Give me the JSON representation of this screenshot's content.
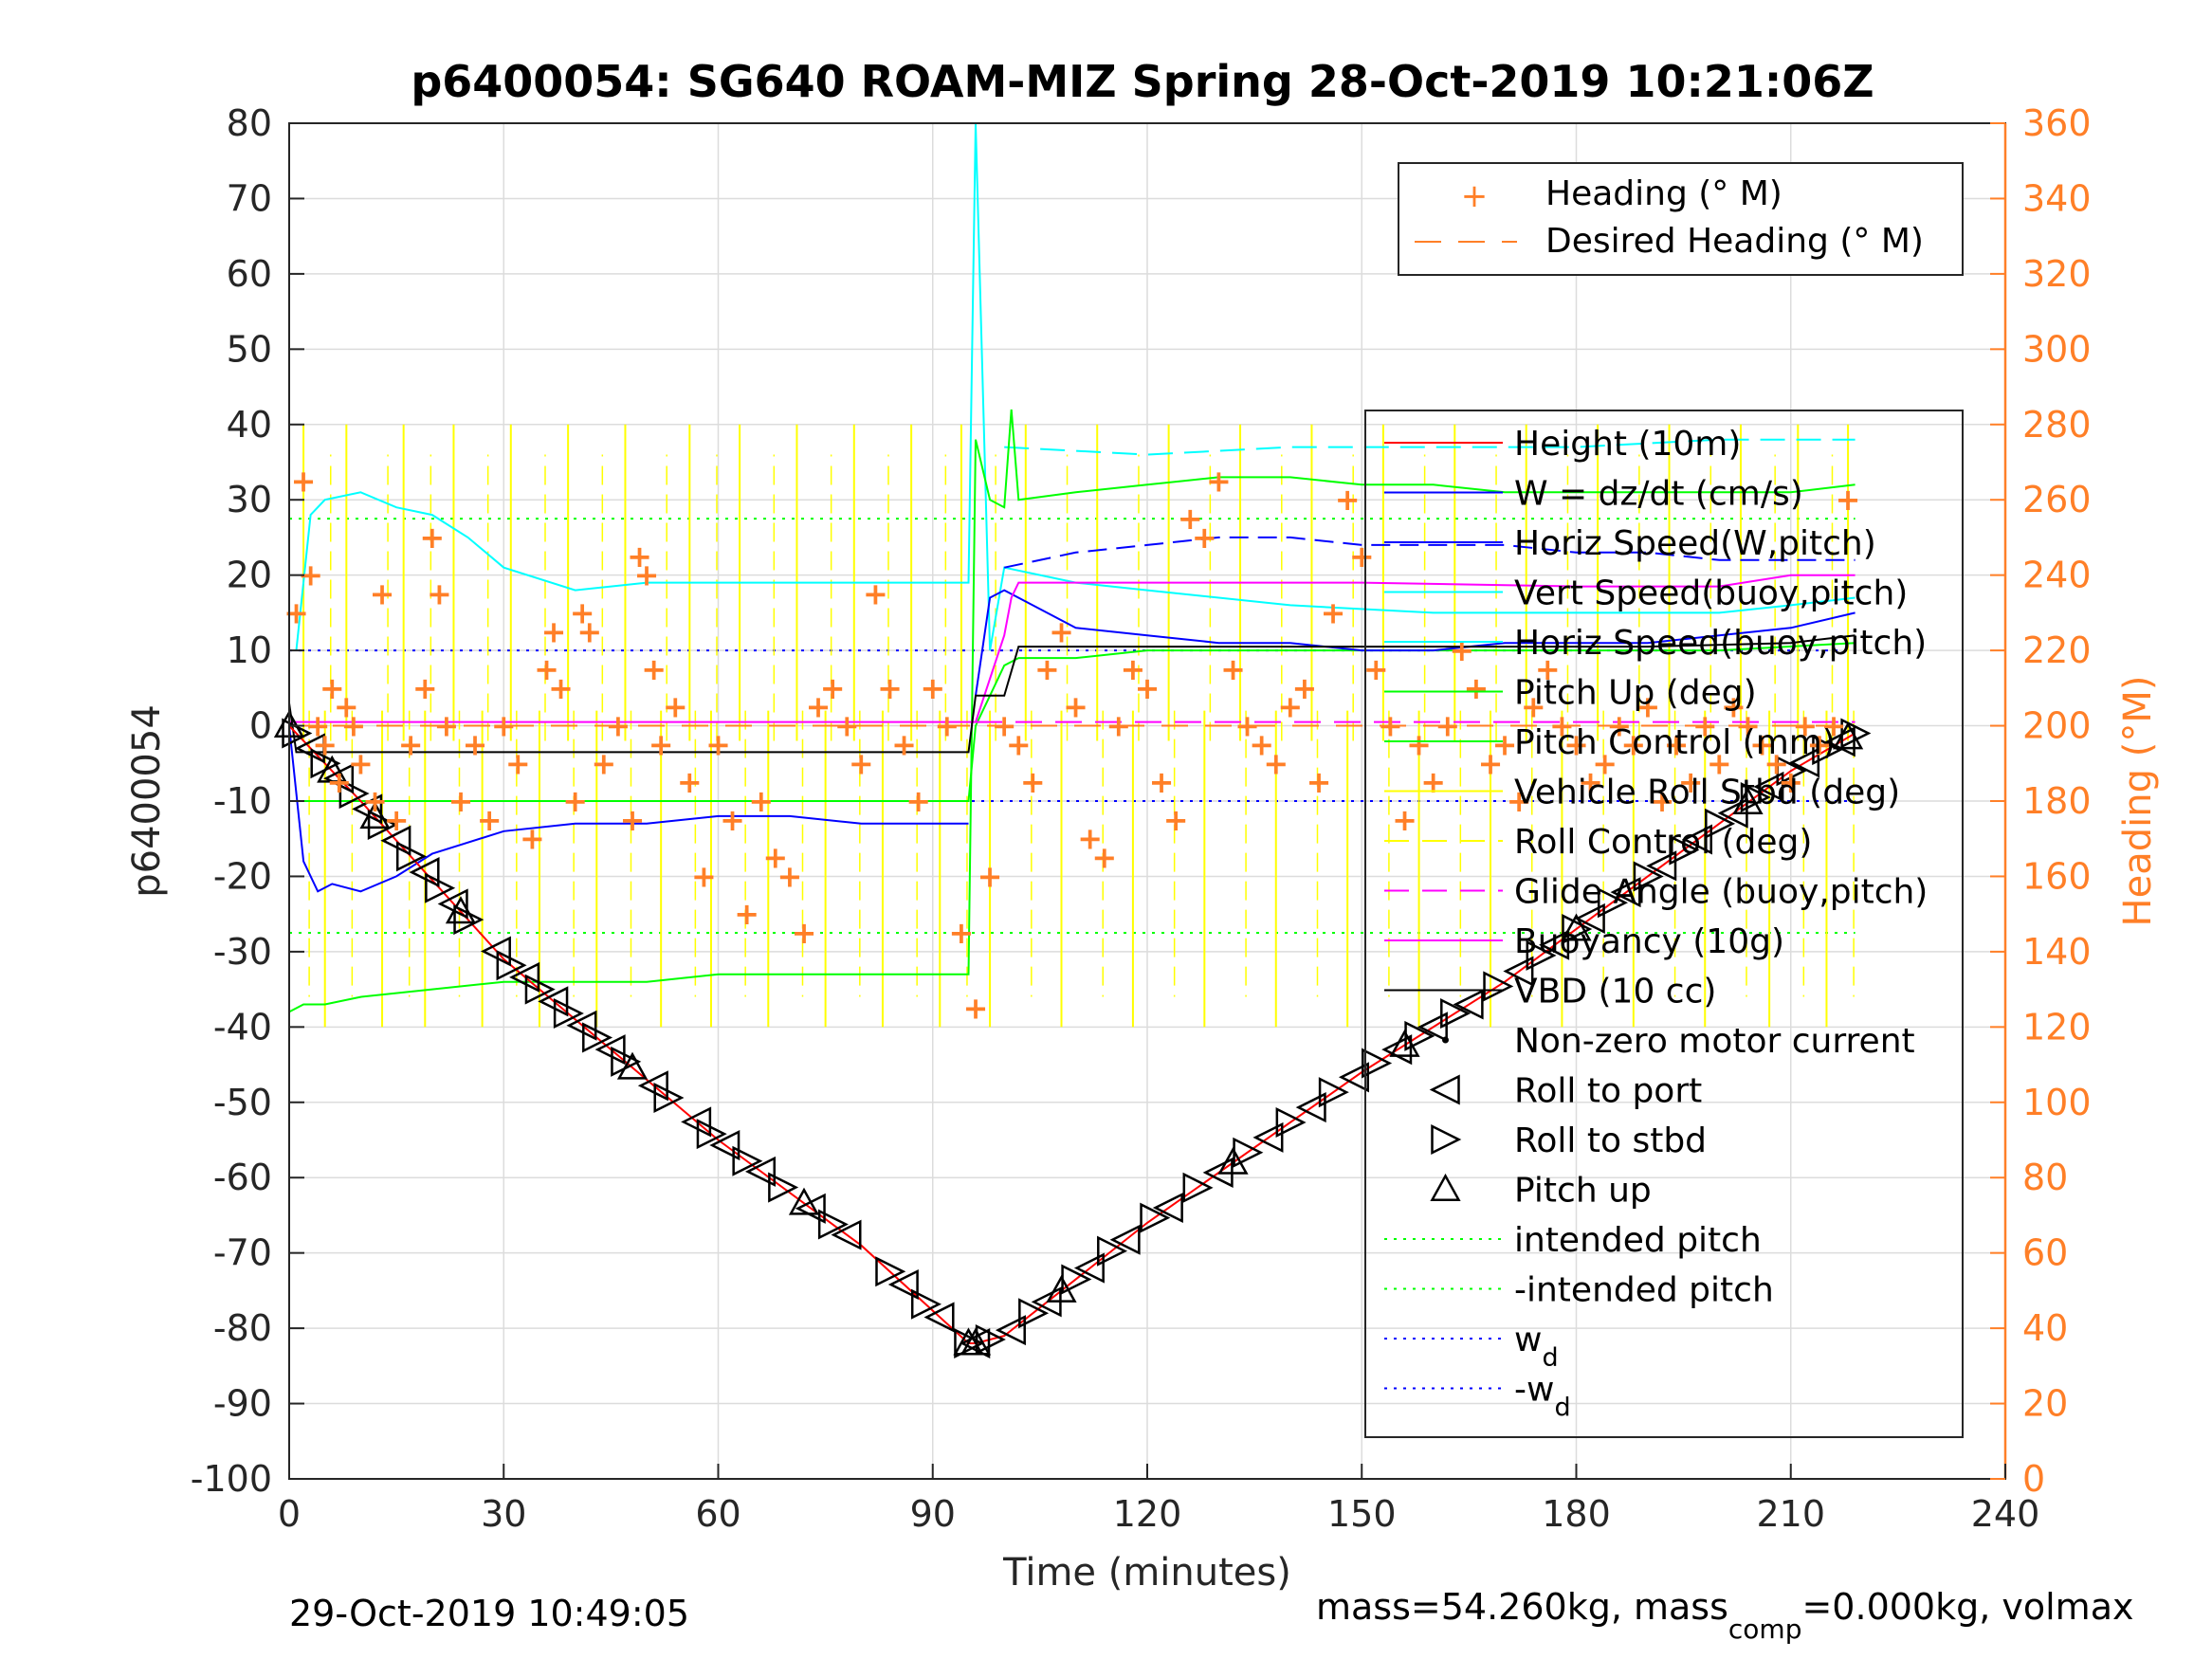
{
  "chart_data": {
    "type": "line",
    "title": "p6400054: SG640 ROAM-MIZ Spring 28-Oct-2019 10:21:06Z",
    "xlabel": "Time (minutes)",
    "ylabel": "p6400054",
    "ylabel_right": "Heading (°M)",
    "xlim": [
      0,
      240
    ],
    "ylim": [
      -100,
      80
    ],
    "ylim_right": [
      0,
      360
    ],
    "x_ticks": [
      "0",
      "30",
      "60",
      "90",
      "120",
      "150",
      "180",
      "210",
      "240"
    ],
    "y_ticks": [
      "80",
      "70",
      "60",
      "50",
      "40",
      "30",
      "20",
      "10",
      "0",
      "-10",
      "-20",
      "-30",
      "-40",
      "-50",
      "-60",
      "-70",
      "-80",
      "-90",
      "-100"
    ],
    "y_right_ticks": [
      "360",
      "340",
      "320",
      "300",
      "280",
      "260",
      "240",
      "220",
      "200",
      "180",
      "160",
      "140",
      "120",
      "100",
      "80",
      "60",
      "40",
      "20",
      "0"
    ],
    "grid": true,
    "footer_left": "29-Oct-2019 10:49:05",
    "footer_right": "mass=54.260kg, mass",
    "footer_right_sub": "comp",
    "footer_right_tail": "=0.000kg, volmax",
    "colors": {
      "heading": "#ff7f27",
      "height": "#ff0000",
      "w": "#0000ff",
      "horiz": "#00ffff",
      "pitch": "#00ff00",
      "roll": "#ffff00",
      "glide": "#ff00ff",
      "vbd": "#000000",
      "intended": "#00ff00",
      "wd": "#0000ff"
    },
    "legend_heading": [
      {
        "label": "Heading (° M)",
        "style": "marker-plus",
        "color": "#ff7f27"
      },
      {
        "label": "Desired Heading (° M)",
        "style": "dashed",
        "color": "#ff7f27"
      }
    ],
    "legend_main": [
      {
        "label": "Height (10m)",
        "style": "line",
        "color": "#ff0000"
      },
      {
        "label": "W = dz/dt (cm/s)",
        "style": "line",
        "color": "#0000ff"
      },
      {
        "label": "Horiz Speed(W,pitch)",
        "style": "line",
        "color": "#0000ff"
      },
      {
        "label": "Vert Speed(buoy,pitch)",
        "style": "line",
        "color": "#00ffff"
      },
      {
        "label": "Horiz Speed(buoy,pitch)",
        "style": "line",
        "color": "#00ffff"
      },
      {
        "label": "Pitch Up (deg)",
        "style": "line",
        "color": "#00ff00"
      },
      {
        "label": "Pitch Control (mm)",
        "style": "line",
        "color": "#00ff00"
      },
      {
        "label": "Vehicle Roll Stbd (deg)",
        "style": "line",
        "color": "#ffff00"
      },
      {
        "label": "Roll Control (deg)",
        "style": "dashed",
        "color": "#ffff00"
      },
      {
        "label": "Glide Angle (buoy,pitch)",
        "style": "dashed",
        "color": "#ff00ff"
      },
      {
        "label": "Buoyancy (10g)",
        "style": "line",
        "color": "#ff00ff"
      },
      {
        "label": "VBD (10 cc)",
        "style": "line",
        "color": "#000000"
      },
      {
        "label": "Non-zero motor current",
        "style": "dot",
        "color": "#000000"
      },
      {
        "label": "Roll to port",
        "style": "tri-left",
        "color": "#000000"
      },
      {
        "label": "Roll to stbd",
        "style": "tri-right",
        "color": "#000000"
      },
      {
        "label": "Pitch up",
        "style": "tri-up",
        "color": "#000000"
      },
      {
        "label": "intended pitch",
        "style": "dotted",
        "color": "#00ff00"
      },
      {
        "label": "-intended pitch",
        "style": "dotted",
        "color": "#00ff00"
      },
      {
        "label": "w",
        "sub": "d",
        "style": "dotted",
        "color": "#0000ff"
      },
      {
        "label": "-w",
        "sub": "d",
        "style": "dotted",
        "color": "#0000ff"
      }
    ],
    "series": {
      "depth": {
        "x": [
          0,
          10,
          30,
          60,
          80,
          95,
          96,
          100,
          120,
          150,
          170,
          190,
          210,
          219
        ],
        "y": [
          0,
          -10,
          -31,
          -55,
          -69,
          -82,
          -82,
          -81,
          -66,
          -46,
          -34,
          -20,
          -6,
          -1
        ]
      },
      "intended_pitch": [
        27.5,
        -27.5
      ],
      "wd": [
        10,
        -10
      ],
      "w_dive": {
        "x": [
          0,
          2,
          4,
          6,
          10,
          15,
          20,
          30,
          40,
          50,
          60,
          70,
          80,
          90,
          95
        ],
        "y": [
          0,
          -18,
          -22,
          -21,
          -22,
          -20,
          -17,
          -14,
          -13,
          -13,
          -12,
          -12,
          -13,
          -13,
          -13
        ]
      },
      "w_climb": {
        "x": [
          96,
          98,
          100,
          110,
          120,
          130,
          140,
          150,
          160,
          170,
          180,
          190,
          200,
          210,
          219
        ],
        "y": [
          4,
          17,
          18,
          13,
          12,
          11,
          11,
          10,
          10,
          11,
          11,
          11,
          12,
          13,
          15
        ]
      },
      "horiz_w_climb": {
        "x": [
          100,
          110,
          120,
          130,
          140,
          150,
          160,
          170,
          180,
          190,
          200,
          210,
          219
        ],
        "y": [
          21,
          23,
          24,
          25,
          25,
          24,
          24,
          24,
          23,
          23,
          22,
          22,
          22
        ]
      },
      "horiz_buoy": {
        "x": [
          1,
          3,
          5,
          10,
          15,
          20,
          25,
          30,
          40,
          50,
          60,
          70,
          80,
          90,
          95,
          96,
          98,
          100,
          110,
          120,
          140,
          160,
          180,
          200,
          210,
          219
        ],
        "y": [
          10,
          28,
          30,
          31,
          29,
          28,
          25,
          21,
          18,
          19,
          19,
          19,
          19,
          19,
          19,
          80,
          10,
          21,
          19,
          18,
          16,
          15,
          15,
          15,
          16,
          17
        ]
      },
      "vert_buoy": {
        "x": [
          100,
          120,
          140,
          160,
          180,
          200,
          219
        ],
        "y": [
          37,
          36,
          37,
          37,
          37,
          38,
          38
        ]
      },
      "pitch_up": {
        "x": [
          0,
          2,
          5,
          10,
          20,
          30,
          40,
          50,
          60,
          70,
          80,
          90,
          95,
          96,
          98,
          100,
          101,
          102,
          110,
          120,
          130,
          140,
          150,
          160,
          170,
          180,
          190,
          200,
          210,
          219
        ],
        "y": [
          -38,
          -37,
          -37,
          -36,
          -35,
          -34,
          -34,
          -34,
          -33,
          -33,
          -33,
          -33,
          -33,
          38,
          30,
          29,
          42,
          30,
          31,
          32,
          33,
          33,
          32,
          32,
          31,
          31,
          31,
          31,
          31,
          32
        ]
      },
      "buoyancy": {
        "x": [
          0,
          95,
          96,
          100,
          101,
          102,
          120,
          150,
          180,
          200,
          210,
          219
        ],
        "y": [
          0.5,
          0.5,
          0.5,
          12,
          17,
          19,
          19,
          19,
          18.5,
          18.5,
          20,
          20
        ]
      },
      "vbd": {
        "x": [
          0,
          1,
          30,
          60,
          90,
          95,
          96,
          100,
          102,
          130,
          160,
          190,
          210,
          219
        ],
        "y": [
          3,
          -3.5,
          -3.5,
          -3.5,
          -3.5,
          -3.5,
          4,
          4,
          10.5,
          10.5,
          10.5,
          10.5,
          11,
          12
        ]
      },
      "pitch_control": {
        "x": [
          0,
          95,
          96,
          98,
          100,
          102,
          110,
          120,
          160,
          200,
          219
        ],
        "y": [
          -10,
          -10,
          0,
          4,
          8,
          9,
          9,
          10,
          10,
          10,
          11
        ]
      },
      "heading_x": [
        1,
        2,
        3,
        4,
        5,
        6,
        7,
        8,
        9,
        10,
        12,
        13,
        15,
        17,
        19,
        20,
        21,
        22,
        24,
        26,
        28,
        30,
        32,
        34,
        36,
        37,
        38,
        40,
        41,
        42,
        44,
        46,
        48,
        49,
        50,
        51,
        52,
        54,
        56,
        58,
        60,
        62,
        64,
        66,
        68,
        70,
        72,
        74,
        76,
        78,
        80,
        82,
        84,
        86,
        88,
        90,
        92,
        94,
        96,
        98,
        100,
        102,
        104,
        106,
        108,
        110,
        112,
        114,
        116,
        118,
        120,
        122,
        124,
        126,
        128,
        130,
        132,
        134,
        136,
        138,
        140,
        142,
        144,
        146,
        148,
        150,
        152,
        154,
        156,
        158,
        160,
        162,
        164,
        166,
        168,
        170,
        172,
        174,
        176,
        178,
        180,
        182,
        184,
        186,
        188,
        190,
        192,
        194,
        196,
        198,
        200,
        202,
        204,
        206,
        208,
        210,
        212,
        214,
        216,
        218
      ],
      "heading_y": [
        230,
        265,
        240,
        200,
        195,
        210,
        185,
        205,
        200,
        190,
        180,
        235,
        175,
        195,
        210,
        250,
        235,
        200,
        180,
        195,
        175,
        200,
        190,
        170,
        215,
        225,
        210,
        180,
        230,
        225,
        190,
        200,
        175,
        245,
        240,
        215,
        195,
        205,
        185,
        160,
        195,
        175,
        150,
        180,
        165,
        160,
        145,
        205,
        210,
        200,
        190,
        235,
        210,
        195,
        180,
        210,
        200,
        145,
        125,
        160,
        200,
        195,
        185,
        215,
        225,
        205,
        170,
        165,
        200,
        215,
        210,
        185,
        175,
        255,
        250,
        265,
        215,
        200,
        195,
        190,
        205,
        210,
        185,
        230,
        260,
        245,
        215,
        200,
        175,
        195,
        185,
        200,
        220,
        210,
        190,
        195,
        180,
        205,
        215,
        200,
        195,
        185,
        190,
        200,
        195,
        205,
        180,
        195,
        185,
        200,
        190,
        205,
        200,
        195,
        190,
        185,
        200,
        195,
        200,
        260
      ],
      "roll_spikes_x": [
        2,
        5,
        8,
        13,
        16,
        19,
        23,
        27,
        31,
        35,
        39,
        43,
        47,
        52,
        56,
        59,
        63,
        67,
        71,
        75,
        79,
        83,
        87,
        91,
        94,
        98,
        103,
        108,
        113,
        118,
        123,
        128,
        133,
        138,
        143,
        148,
        153,
        158,
        163,
        168,
        173,
        178,
        183,
        188,
        193,
        198,
        203,
        207,
        211,
        215,
        218
      ],
      "roll_spikes_dir": [
        1,
        -1,
        1,
        -1,
        1,
        -1,
        1,
        -1,
        1,
        -1,
        1,
        -1,
        1,
        -1,
        1,
        -1,
        1,
        -1,
        1,
        -1,
        1,
        -1,
        1,
        -1,
        1,
        -1,
        1,
        -1,
        1,
        -1,
        1,
        -1,
        1,
        -1,
        1,
        -1,
        1,
        -1,
        1,
        -1,
        1,
        -1,
        1,
        -1,
        1,
        -1,
        1,
        -1,
        1,
        -1,
        1
      ],
      "markers_port_x": [
        3,
        7,
        11,
        15,
        19,
        23,
        29,
        33,
        37,
        41,
        45,
        51,
        57,
        61,
        66,
        73,
        78,
        86,
        91,
        96,
        101,
        106,
        112,
        117,
        123,
        130,
        137,
        143,
        149,
        155,
        160,
        165,
        172,
        177,
        182,
        187,
        192,
        197,
        202,
        207,
        212,
        217
      ],
      "markers_stbd_x": [
        1,
        5,
        9,
        13,
        17,
        21,
        25,
        31,
        35,
        39,
        43,
        47,
        53,
        59,
        64,
        69,
        76,
        84,
        89,
        95,
        98,
        104,
        110,
        115,
        121,
        127,
        134,
        140,
        146,
        152,
        158,
        163,
        169,
        175,
        180,
        185,
        190,
        195,
        200,
        205,
        210,
        215,
        219
      ],
      "markers_pitch_x": [
        0,
        6,
        12,
        24,
        48,
        72,
        95,
        96,
        108,
        132,
        156,
        180,
        204,
        218
      ]
    }
  }
}
